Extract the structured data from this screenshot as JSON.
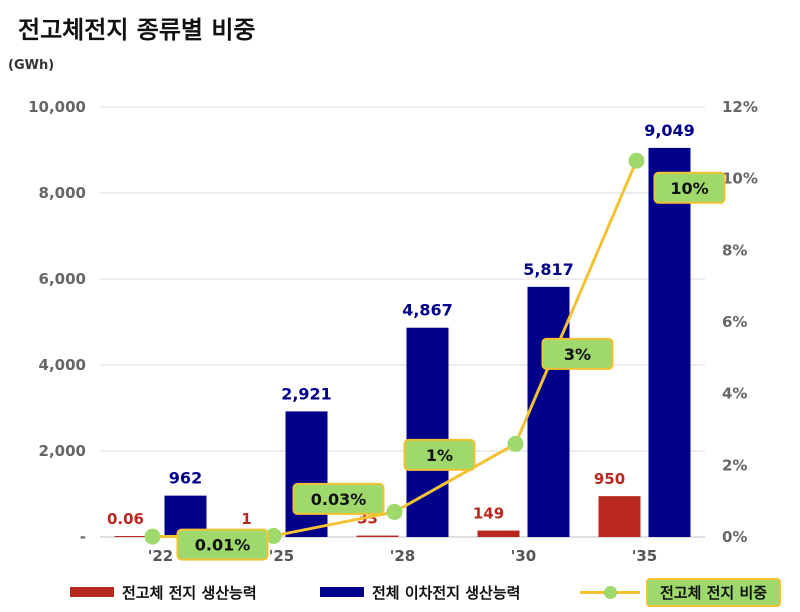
{
  "title": "전고체전지 종류별 비중",
  "unit": "(GWh)",
  "colors": {
    "solid_state": "#b8281e",
    "total": "#00008b",
    "share_line": "#f2c233",
    "share_marker": "#9fd86b"
  },
  "legend": {
    "solid_state": "전고체 전지 생산능력",
    "total": "전체 이차전지 생산능력",
    "share": "전고체 전지 비중"
  },
  "chart_data": {
    "type": "bar",
    "categories": [
      "'22",
      "'25",
      "'28",
      "'30",
      "'35"
    ],
    "series": [
      {
        "name": "전고체 전지 생산능력",
        "values": [
          0.06,
          1,
          33,
          149,
          950
        ],
        "labels": [
          "0.06",
          "1",
          "33",
          "149",
          "950"
        ]
      },
      {
        "name": "전체 이차전지 생산능력",
        "values": [
          962,
          2921,
          4867,
          5817,
          9049
        ],
        "labels": [
          "962",
          "2,921",
          "4,867",
          "5,817",
          "9,049"
        ]
      }
    ],
    "line_series": {
      "name": "전고체 전지 비중",
      "values": [
        0.01,
        0.03,
        0.7,
        2.6,
        10.5
      ],
      "labels": [
        "0.01%",
        "0.03%",
        "1%",
        "3%",
        "10%"
      ]
    },
    "y_left": {
      "ylim": [
        0,
        10000
      ],
      "ticks": [
        0,
        2000,
        4000,
        6000,
        8000,
        10000
      ],
      "tick_labels": [
        "-",
        "2,000",
        "4,000",
        "6,000",
        "8,000",
        "10,000"
      ]
    },
    "y_right": {
      "ylim": [
        0,
        12
      ],
      "ticks": [
        0,
        2,
        4,
        6,
        8,
        10,
        12
      ],
      "tick_labels": [
        "0%",
        "2%",
        "4%",
        "6%",
        "8%",
        "10%",
        "12%"
      ]
    },
    "grid": true,
    "legend_position": "bottom"
  }
}
